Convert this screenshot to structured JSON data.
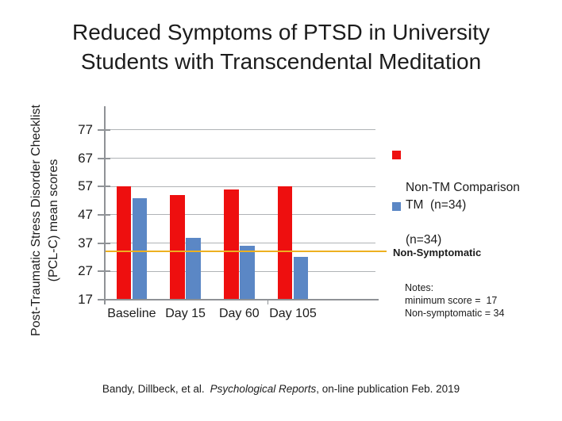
{
  "title": {
    "lines": [
      "Reduced Symptoms of PTSD in University",
      "Students with Transcendental Meditation"
    ]
  },
  "y_axis": {
    "label_line1": "Post-Traumatic Stress Disorder Checklist",
    "label_line2": "(PCL-C) mean scores"
  },
  "legend": {
    "non_tm": {
      "label_line1": "Non-TM Comparison",
      "label_line2": "(n=34)"
    },
    "tm": {
      "label": "TM  (n=34)"
    }
  },
  "reference_line_label": "Non-Symptomatic",
  "notes": {
    "heading": "Notes:",
    "line1": "minimum score =  17",
    "line2": "Non-symptomatic = 34"
  },
  "citation": {
    "authors": "Bandy, Dillbeck, et al.",
    "journal": "Psychological Reports",
    "suffix": ", on-line publication Feb. 2019"
  },
  "colors": {
    "non_tm_bar": "#ee0f0f",
    "tm_bar": "#5b87c5",
    "reference_line": "#edb020",
    "gridline": "#b0b3b6",
    "axis": "#8f9296"
  },
  "chart_data": {
    "type": "bar",
    "title": "Reduced Symptoms of PTSD in University Students with Transcendental Meditation",
    "ylabel": "Post-Traumatic Stress Disorder Checklist (PCL-C) mean scores",
    "xlabel": "",
    "categories": [
      "Baseline",
      "Day 15",
      "Day 60",
      "Day 105"
    ],
    "series": [
      {
        "name": "Non-TM Comparison (n=34)",
        "color": "#ee0f0f",
        "values": [
          57,
          54,
          56,
          57
        ]
      },
      {
        "name": "TM (n=34)",
        "color": "#5b87c5",
        "values": [
          53,
          39,
          36,
          32
        ]
      }
    ],
    "reference_line": {
      "label": "Non-Symptomatic",
      "value": 34,
      "color": "#edb020"
    },
    "yticks": [
      17,
      27,
      37,
      47,
      57,
      67,
      77
    ],
    "ylim": [
      17,
      85
    ],
    "grid": true,
    "legend_position": "right",
    "notes": {
      "minimum_score": 17,
      "non_symptomatic": 34
    }
  }
}
